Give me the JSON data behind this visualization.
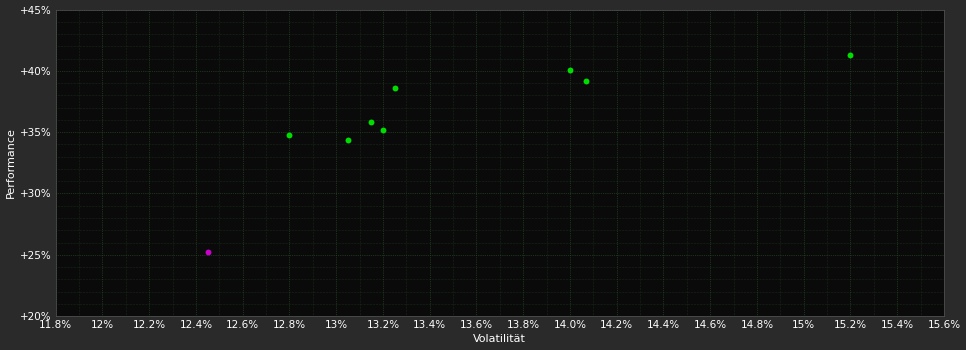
{
  "background_color": "#2a2a2a",
  "plot_bg_color": "#0a0a0a",
  "grid_color": "#2d5a2d",
  "text_color": "#ffffff",
  "xlabel": "Volatilität",
  "ylabel": "Performance",
  "xlim": [
    0.118,
    0.156
  ],
  "ylim": [
    0.2,
    0.45
  ],
  "xtick_step": 0.002,
  "ytick_labels": [
    "+20%",
    "+25%",
    "+30%",
    "+35%",
    "+40%",
    "+45%"
  ],
  "ytick_values": [
    0.2,
    0.25,
    0.3,
    0.35,
    0.4,
    0.45
  ],
  "green_points": [
    [
      0.128,
      0.348
    ],
    [
      0.1305,
      0.344
    ],
    [
      0.1315,
      0.358
    ],
    [
      0.132,
      0.352
    ],
    [
      0.1325,
      0.386
    ],
    [
      0.14,
      0.401
    ],
    [
      0.1407,
      0.392
    ],
    [
      0.152,
      0.413
    ]
  ],
  "magenta_points": [
    [
      0.1245,
      0.252
    ]
  ],
  "green_color": "#00dd00",
  "magenta_color": "#cc00cc",
  "marker_size": 18,
  "font_size_axis": 8,
  "font_size_tick": 7.5
}
